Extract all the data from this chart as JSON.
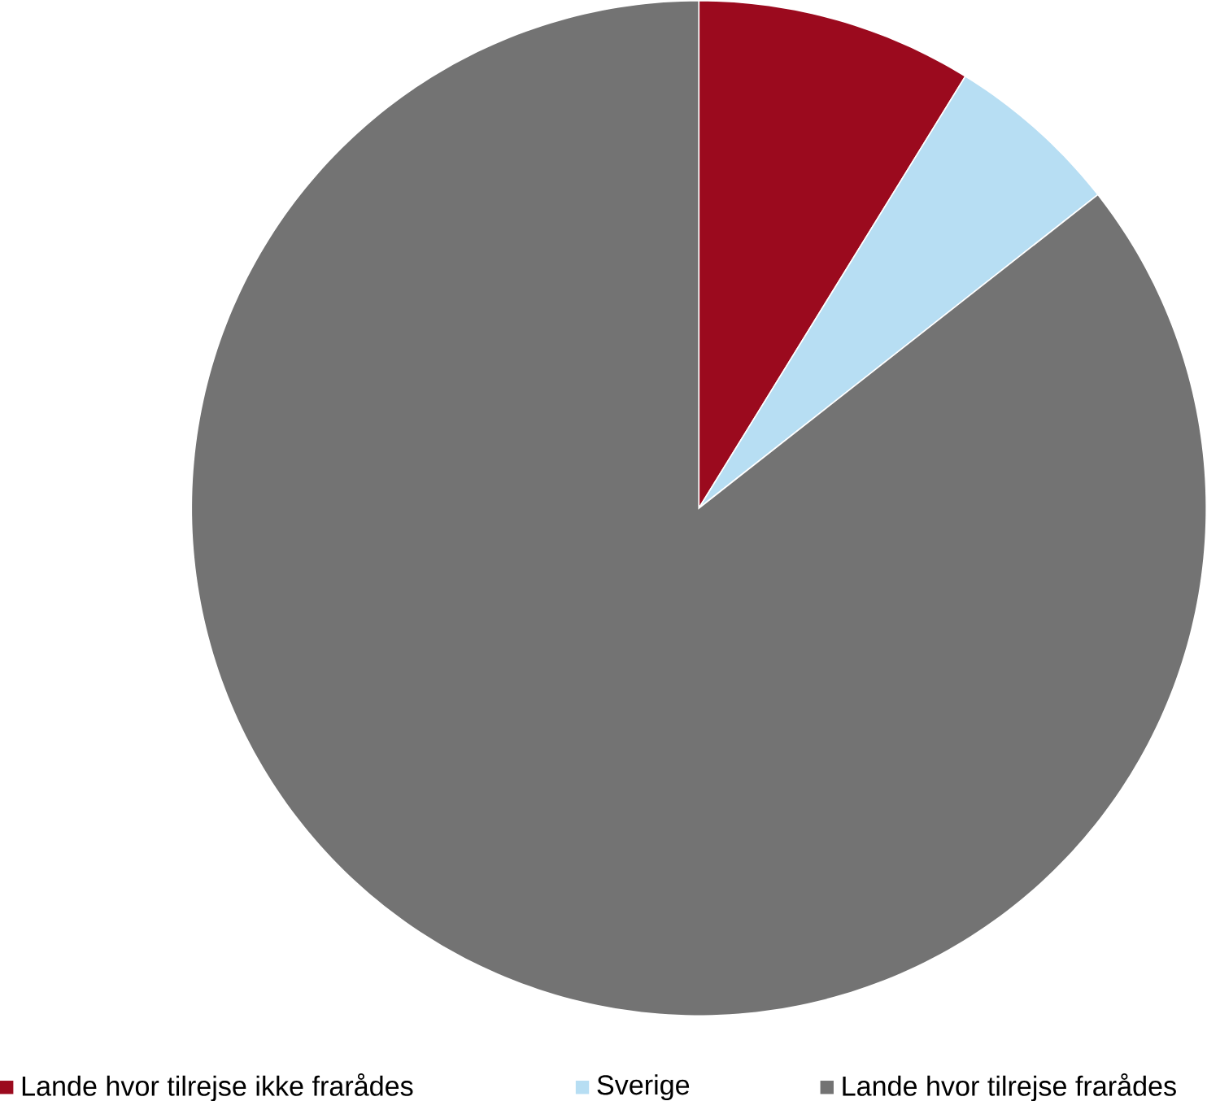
{
  "chart_data": {
    "type": "pie",
    "categories": [
      "Lande hvor tilrejse ikke frarådes",
      "Sverige",
      "Lande hvor tilrejse frarådes"
    ],
    "values": [
      8.8,
      5.6,
      85.6
    ],
    "colors": [
      "#9b0a1e",
      "#b7def3",
      "#737373"
    ],
    "legend": "bottom"
  }
}
